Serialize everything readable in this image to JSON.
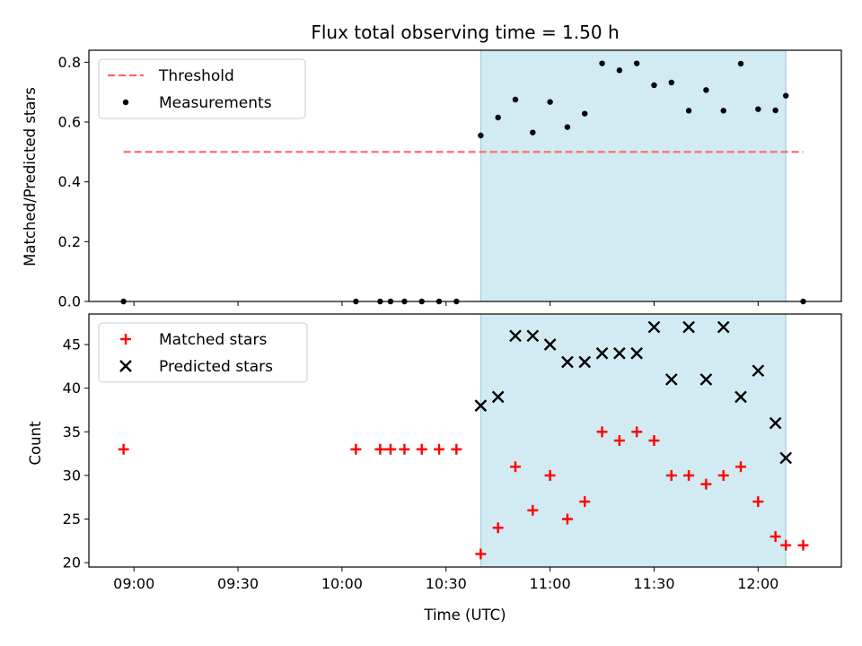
{
  "chart_data": [
    {
      "type": "scatter",
      "title": "Flux total observing time = 1.50 h",
      "xlabel": "",
      "ylabel": "Matched/Predicted stars",
      "ylim": [
        0,
        0.84
      ],
      "yticks": [
        "0.0",
        "0.2",
        "0.4",
        "0.6",
        "0.8"
      ],
      "yticks_values": [
        0,
        0.2,
        0.4,
        0.6,
        0.8
      ],
      "shaded_region": {
        "start": "10:40",
        "end": "12:08",
        "color": "#add8e6"
      },
      "threshold": {
        "name": "Threshold",
        "value": 0.5,
        "x_start": "08:57",
        "x_end": "12:13",
        "color": "#ff6666",
        "style": "dashed"
      },
      "series": [
        {
          "name": "Measurements",
          "color": "#000000",
          "marker": "dot",
          "points": [
            {
              "x": "08:57",
              "y": 0.0
            },
            {
              "x": "10:04",
              "y": 0.0
            },
            {
              "x": "10:11",
              "y": 0.0
            },
            {
              "x": "10:14",
              "y": 0.0
            },
            {
              "x": "10:18",
              "y": 0.0
            },
            {
              "x": "10:23",
              "y": 0.0
            },
            {
              "x": "10:28",
              "y": 0.0
            },
            {
              "x": "10:33",
              "y": 0.0
            },
            {
              "x": "10:40",
              "y": 0.555
            },
            {
              "x": "10:45",
              "y": 0.615
            },
            {
              "x": "10:50",
              "y": 0.675
            },
            {
              "x": "10:55",
              "y": 0.565
            },
            {
              "x": "11:00",
              "y": 0.667
            },
            {
              "x": "11:05",
              "y": 0.583
            },
            {
              "x": "11:10",
              "y": 0.628
            },
            {
              "x": "11:15",
              "y": 0.796
            },
            {
              "x": "11:20",
              "y": 0.773
            },
            {
              "x": "11:25",
              "y": 0.796
            },
            {
              "x": "11:30",
              "y": 0.723
            },
            {
              "x": "11:35",
              "y": 0.732
            },
            {
              "x": "11:40",
              "y": 0.638
            },
            {
              "x": "11:45",
              "y": 0.707
            },
            {
              "x": "11:50",
              "y": 0.638
            },
            {
              "x": "11:55",
              "y": 0.795
            },
            {
              "x": "12:00",
              "y": 0.643
            },
            {
              "x": "12:05",
              "y": 0.639
            },
            {
              "x": "12:08",
              "y": 0.688
            },
            {
              "x": "12:13",
              "y": 0.0
            }
          ]
        }
      ],
      "legend": {
        "position": "upper-left",
        "entries": [
          "Threshold",
          "Measurements"
        ]
      }
    },
    {
      "type": "scatter",
      "title": "",
      "xlabel": "Time (UTC)",
      "ylabel": "Count",
      "ylim": [
        19.5,
        48.5
      ],
      "yticks": [
        "20",
        "25",
        "30",
        "35",
        "40",
        "45"
      ],
      "yticks_values": [
        20,
        25,
        30,
        35,
        40,
        45
      ],
      "xticks": [
        "09:00",
        "09:30",
        "10:00",
        "10:30",
        "11:00",
        "11:30",
        "12:00"
      ],
      "xlim": [
        "08:47",
        "12:24"
      ],
      "shaded_region": {
        "start": "10:40",
        "end": "12:08",
        "color": "#add8e6"
      },
      "series": [
        {
          "name": "Matched stars",
          "color": "#ff0000",
          "marker": "plus",
          "points": [
            {
              "x": "08:57",
              "y": 33
            },
            {
              "x": "10:04",
              "y": 33
            },
            {
              "x": "10:11",
              "y": 33
            },
            {
              "x": "10:14",
              "y": 33
            },
            {
              "x": "10:18",
              "y": 33
            },
            {
              "x": "10:23",
              "y": 33
            },
            {
              "x": "10:28",
              "y": 33
            },
            {
              "x": "10:33",
              "y": 33
            },
            {
              "x": "10:40",
              "y": 21
            },
            {
              "x": "10:45",
              "y": 24
            },
            {
              "x": "10:50",
              "y": 31
            },
            {
              "x": "10:55",
              "y": 26
            },
            {
              "x": "11:00",
              "y": 30
            },
            {
              "x": "11:05",
              "y": 25
            },
            {
              "x": "11:10",
              "y": 27
            },
            {
              "x": "11:15",
              "y": 35
            },
            {
              "x": "11:20",
              "y": 34
            },
            {
              "x": "11:25",
              "y": 35
            },
            {
              "x": "11:30",
              "y": 34
            },
            {
              "x": "11:35",
              "y": 30
            },
            {
              "x": "11:40",
              "y": 30
            },
            {
              "x": "11:45",
              "y": 29
            },
            {
              "x": "11:50",
              "y": 30
            },
            {
              "x": "11:55",
              "y": 31
            },
            {
              "x": "12:00",
              "y": 27
            },
            {
              "x": "12:05",
              "y": 23
            },
            {
              "x": "12:08",
              "y": 22
            },
            {
              "x": "12:13",
              "y": 22
            }
          ]
        },
        {
          "name": "Predicted stars",
          "color": "#000000",
          "marker": "x",
          "points": [
            {
              "x": "10:40",
              "y": 38
            },
            {
              "x": "10:45",
              "y": 39
            },
            {
              "x": "10:50",
              "y": 46
            },
            {
              "x": "10:55",
              "y": 46
            },
            {
              "x": "11:00",
              "y": 45
            },
            {
              "x": "11:05",
              "y": 43
            },
            {
              "x": "11:10",
              "y": 43
            },
            {
              "x": "11:15",
              "y": 44
            },
            {
              "x": "11:20",
              "y": 44
            },
            {
              "x": "11:25",
              "y": 44
            },
            {
              "x": "11:30",
              "y": 47
            },
            {
              "x": "11:35",
              "y": 41
            },
            {
              "x": "11:40",
              "y": 47
            },
            {
              "x": "11:45",
              "y": 41
            },
            {
              "x": "11:50",
              "y": 47
            },
            {
              "x": "11:55",
              "y": 39
            },
            {
              "x": "12:00",
              "y": 42
            },
            {
              "x": "12:05",
              "y": 36
            },
            {
              "x": "12:08",
              "y": 32
            }
          ]
        }
      ],
      "legend": {
        "position": "upper-left",
        "entries": [
          "Matched stars",
          "Predicted stars"
        ]
      }
    }
  ]
}
